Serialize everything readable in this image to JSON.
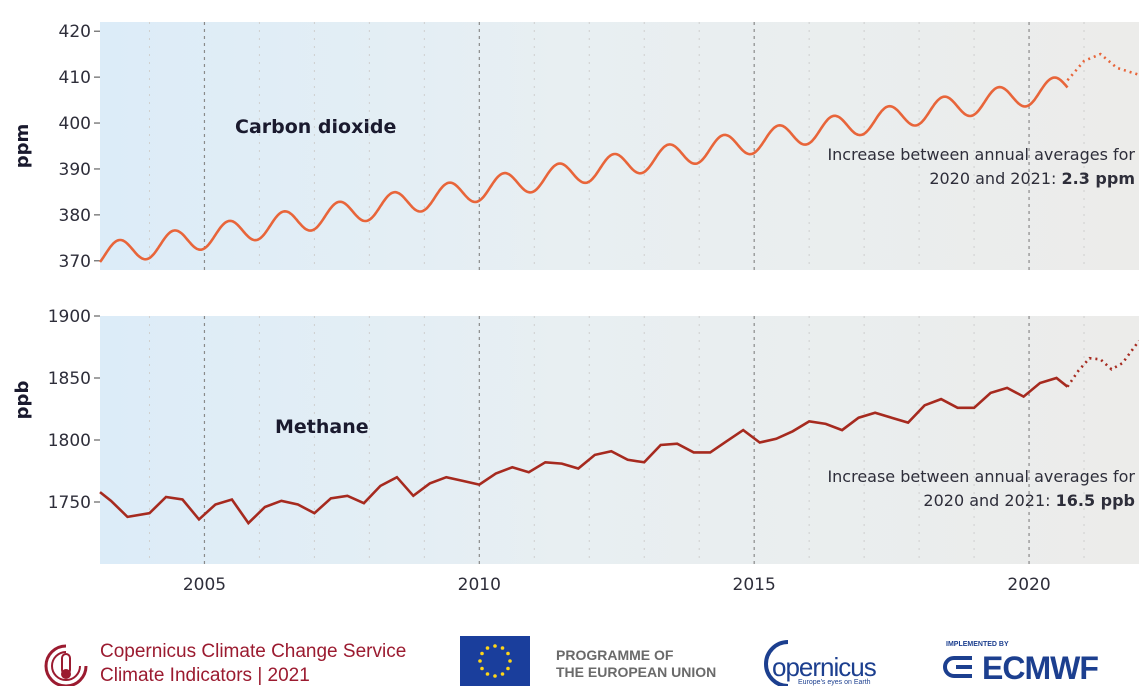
{
  "chart_data": [
    {
      "type": "line",
      "title": "Carbon dioxide",
      "ylabel": "ppm",
      "ylim": [
        368,
        422
      ],
      "xlim": [
        2003.1,
        2022.0
      ],
      "yticks": [
        370,
        380,
        390,
        400,
        410,
        420
      ],
      "xticks": [
        2005,
        2010,
        2015,
        2020
      ],
      "series_color": "#e8653a",
      "trend": {
        "start": 2003.1,
        "base": 371.2,
        "slope": 2.08,
        "amp": 2.6,
        "end_observed": 2020.7
      },
      "annotation_line1": "Increase between annual averages for",
      "annotation_line2_prefix": "2020 and 2021: ",
      "annotation_value": "2.3 ppm",
      "x": [
        2003.1,
        2003.5,
        2004.0,
        2004.5,
        2005.0,
        2005.5,
        2006.0,
        2006.5,
        2007.0,
        2007.5,
        2008.0,
        2008.5,
        2009.0,
        2009.5,
        2010.0,
        2010.5,
        2011.0,
        2011.5,
        2012.0,
        2012.5,
        2013.0,
        2013.5,
        2014.0,
        2014.5,
        2015.0,
        2015.5,
        2016.0,
        2016.5,
        2017.0,
        2017.5,
        2018.0,
        2018.5,
        2019.0,
        2019.5,
        2020.0,
        2020.5,
        2020.7
      ],
      "projection_x": [
        2020.7,
        2021.0,
        2021.3,
        2021.6,
        2022.0
      ],
      "projection_y": [
        409.3,
        413.5,
        415.0,
        412.0,
        410.5
      ]
    },
    {
      "type": "line",
      "title": "Methane",
      "ylabel": "ppb",
      "ylim": [
        1700,
        1900
      ],
      "xlim": [
        2003.1,
        2022.0
      ],
      "yticks": [
        1750,
        1800,
        1850,
        1900
      ],
      "xticks": [
        2005,
        2010,
        2015,
        2020
      ],
      "series_color": "#a62a1f",
      "annotation_line1": "Increase between annual averages for",
      "annotation_line2_prefix": "2020 and 2021: ",
      "annotation_value": "16.5 ppb",
      "x": [
        2003.1,
        2003.3,
        2003.6,
        2004.0,
        2004.3,
        2004.6,
        2004.9,
        2005.2,
        2005.5,
        2005.8,
        2006.1,
        2006.4,
        2006.7,
        2007.0,
        2007.3,
        2007.6,
        2007.9,
        2008.2,
        2008.5,
        2008.8,
        2009.1,
        2009.4,
        2009.7,
        2010.0,
        2010.3,
        2010.6,
        2010.9,
        2011.2,
        2011.5,
        2011.8,
        2012.1,
        2012.4,
        2012.7,
        2013.0,
        2013.3,
        2013.6,
        2013.9,
        2014.2,
        2014.5,
        2014.8,
        2015.1,
        2015.4,
        2015.7,
        2016.0,
        2016.3,
        2016.6,
        2016.9,
        2017.2,
        2017.5,
        2017.8,
        2018.1,
        2018.4,
        2018.7,
        2019.0,
        2019.3,
        2019.6,
        2019.9,
        2020.2,
        2020.5,
        2020.7
      ],
      "y": [
        1758,
        1751,
        1738,
        1741,
        1754,
        1752,
        1736,
        1748,
        1752,
        1733,
        1746,
        1751,
        1748,
        1741,
        1753,
        1755,
        1749,
        1763,
        1770,
        1755,
        1765,
        1770,
        1767,
        1764,
        1773,
        1778,
        1774,
        1782,
        1781,
        1777,
        1788,
        1791,
        1784,
        1782,
        1796,
        1797,
        1790,
        1790,
        1799,
        1808,
        1798,
        1801,
        1807,
        1815,
        1813,
        1808,
        1818,
        1822,
        1818,
        1814,
        1828,
        1833,
        1826,
        1826,
        1838,
        1842,
        1835,
        1846,
        1850,
        1843
      ],
      "projection_x": [
        2020.7,
        2020.9,
        2021.1,
        2021.3,
        2021.5,
        2021.7,
        2022.0
      ],
      "projection_y": [
        1843,
        1856,
        1866,
        1865,
        1857,
        1862,
        1880
      ]
    }
  ],
  "footer": {
    "c3s_line1": "Copernicus Climate Change Service",
    "c3s_line2": "Climate Indicators | 2021",
    "eu_line1": "PROGRAMME OF",
    "eu_line2": "THE EUROPEAN UNION",
    "copernicus_word": "opernicus",
    "copernicus_tagline": "Europe's eyes on Earth",
    "ecmwf_small": "IMPLEMENTED BY",
    "ecmwf_word": "ECMWF"
  }
}
